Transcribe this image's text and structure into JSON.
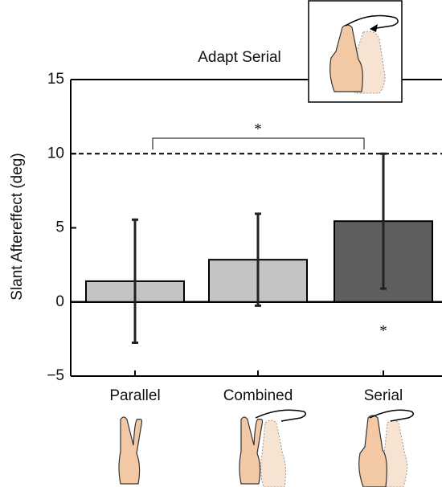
{
  "chart_data": {
    "type": "bar",
    "title": "Adapt Serial",
    "ylabel": "Slant Aftereffect (deg)",
    "categories": [
      "Parallel",
      "Combined",
      "Serial"
    ],
    "values": [
      1.4,
      2.85,
      5.45
    ],
    "errors": [
      4.15,
      3.1,
      4.55
    ],
    "colors": [
      "#c4c4c4",
      "#c4c4c4",
      "#5e5e5e"
    ],
    "ylim": [
      -5,
      15
    ],
    "yticks": [
      {
        "value": -5,
        "label": "−5"
      },
      0,
      5,
      10,
      15
    ],
    "reference_line": 10,
    "annotations": [
      "*",
      "*"
    ]
  }
}
